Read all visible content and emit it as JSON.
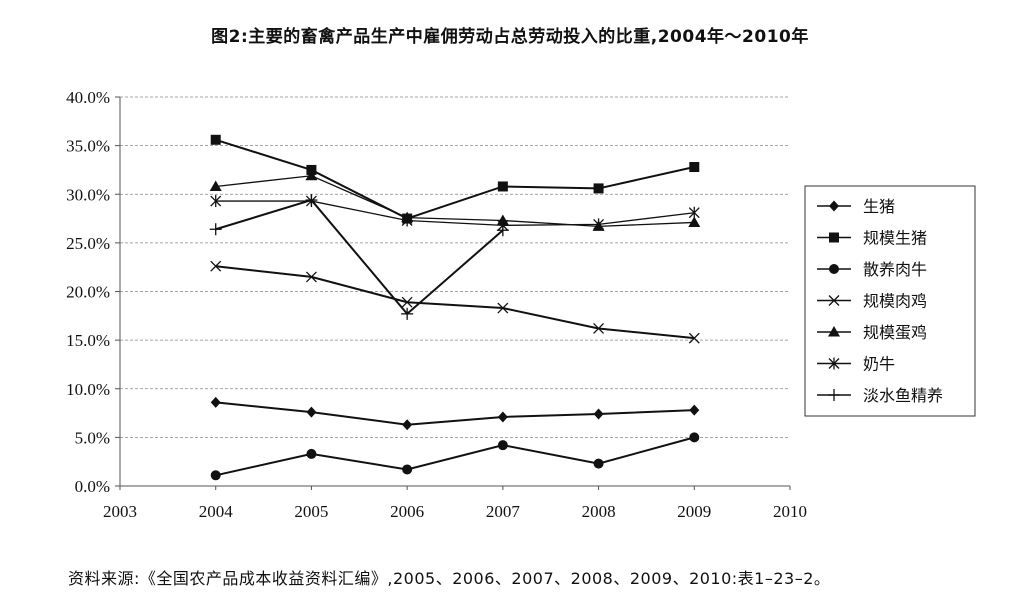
{
  "chart_data": {
    "type": "line",
    "title": "图2:主要的畜禽产品生产中雇佣劳动占总劳动投入的比重,2004年～2010年",
    "xlabel": "",
    "ylabel": "",
    "x_ticks": [
      "2003",
      "2004",
      "2005",
      "2006",
      "2007",
      "2008",
      "2009",
      "2010"
    ],
    "xlim": [
      2003,
      2010
    ],
    "y_ticks": [
      "0.0%",
      "5.0%",
      "10.0%",
      "15.0%",
      "20.0%",
      "25.0%",
      "30.0%",
      "35.0%",
      "40.0%"
    ],
    "ylim": [
      0,
      40
    ],
    "grid": "horizontal dashed",
    "legend_position": "right",
    "series": [
      {
        "name": "生猪",
        "marker": "diamond",
        "points": [
          [
            2004,
            8.6
          ],
          [
            2005,
            7.6
          ],
          [
            2006,
            6.3
          ],
          [
            2007,
            7.1
          ],
          [
            2008,
            7.4
          ],
          [
            2009,
            7.8
          ]
        ]
      },
      {
        "name": "规模生猪",
        "marker": "square",
        "points": [
          [
            2004,
            35.6
          ],
          [
            2005,
            32.5
          ],
          [
            2006,
            27.5
          ],
          [
            2007,
            30.8
          ],
          [
            2008,
            30.6
          ],
          [
            2009,
            32.8
          ]
        ]
      },
      {
        "name": "散养肉牛",
        "marker": "circle",
        "points": [
          [
            2004,
            1.1
          ],
          [
            2005,
            3.3
          ],
          [
            2006,
            1.7
          ],
          [
            2007,
            4.2
          ],
          [
            2008,
            2.3
          ],
          [
            2009,
            5.0
          ]
        ]
      },
      {
        "name": "规模肉鸡",
        "marker": "x",
        "points": [
          [
            2004,
            22.6
          ],
          [
            2005,
            21.5
          ],
          [
            2006,
            18.9
          ],
          [
            2007,
            18.3
          ],
          [
            2008,
            16.2
          ],
          [
            2009,
            15.2
          ]
        ]
      },
      {
        "name": "规模蛋鸡",
        "marker": "triangle",
        "points": [
          [
            2004,
            30.8
          ],
          [
            2005,
            31.9
          ],
          [
            2006,
            27.6
          ],
          [
            2007,
            27.3
          ],
          [
            2008,
            26.7
          ],
          [
            2009,
            27.1
          ]
        ]
      },
      {
        "name": "奶牛",
        "marker": "asterisk",
        "points": [
          [
            2004,
            29.3
          ],
          [
            2005,
            29.3
          ],
          [
            2006,
            27.3
          ],
          [
            2007,
            26.8
          ],
          [
            2008,
            26.9
          ],
          [
            2009,
            28.1
          ]
        ]
      },
      {
        "name": "淡水鱼精养",
        "marker": "plus",
        "points": [
          [
            2004,
            26.4
          ],
          [
            2005,
            29.4
          ],
          [
            2006,
            17.7
          ],
          [
            2007,
            26.3
          ]
        ]
      }
    ]
  },
  "source_note": "资料来源:《全国农产品成本收益资料汇编》,2005、2006、2007、2008、2009、2010:表1–23–2。"
}
